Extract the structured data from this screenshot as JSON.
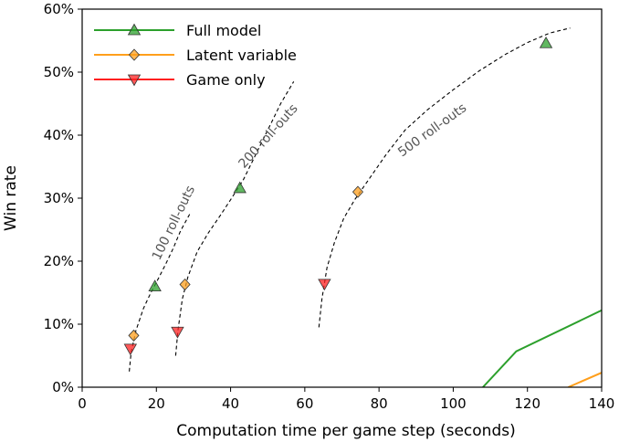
{
  "chart_data": {
    "type": "line",
    "xlabel": "Computation time per game step (seconds)",
    "ylabel": "Win rate",
    "xlim": [
      0,
      140
    ],
    "ylim": [
      0,
      60
    ],
    "xticks": [
      0,
      20,
      40,
      60,
      80,
      100,
      120,
      140
    ],
    "xtick_labels": [
      "0",
      "20",
      "40",
      "60",
      "80",
      "100",
      "120",
      "140"
    ],
    "yticks": [
      0,
      10,
      20,
      30,
      40,
      50,
      60
    ],
    "ytick_labels": [
      "0%",
      "10%",
      "20%",
      "30%",
      "40%",
      "50%",
      "60%"
    ],
    "grid": false,
    "legend_position": "top-left",
    "series": [
      {
        "name": "Full model",
        "color": "#2ca02c",
        "marker": "triangle-up",
        "points": [
          [
            19.6,
            16
          ],
          [
            42.5,
            31.6
          ],
          [
            125,
            54.6
          ]
        ],
        "line": [
          [
            108,
            0
          ],
          [
            117,
            5.7
          ],
          [
            140,
            12.2
          ]
        ]
      },
      {
        "name": "Latent variable",
        "color": "#ff9f1c",
        "marker": "diamond",
        "points": [
          [
            13.9,
            8.2
          ],
          [
            27.7,
            16.3
          ],
          [
            74.3,
            31
          ]
        ],
        "line": [
          [
            131,
            0
          ],
          [
            140,
            2.3
          ]
        ]
      },
      {
        "name": "Game only",
        "color": "#ff2020",
        "marker": "triangle-down",
        "points": [
          [
            13,
            6.1
          ],
          [
            25.7,
            8.8
          ],
          [
            65.3,
            16.4
          ]
        ],
        "line": []
      }
    ],
    "curves": [
      {
        "label": "100 roll-outs",
        "points": [
          [
            12.7,
            2.5
          ],
          [
            13.2,
            5.5
          ],
          [
            14.5,
            9
          ],
          [
            16.5,
            12.5
          ],
          [
            18.5,
            15
          ],
          [
            20.5,
            17.2
          ],
          [
            22.5,
            19.5
          ],
          [
            24.5,
            22
          ],
          [
            26.5,
            24.8
          ],
          [
            29,
            27.5
          ]
        ]
      },
      {
        "label": "200 roll-outs",
        "points": [
          [
            25.2,
            5
          ],
          [
            25.8,
            9
          ],
          [
            27,
            14
          ],
          [
            28.5,
            17.5
          ],
          [
            31,
            21.5
          ],
          [
            34,
            24.5
          ],
          [
            37.5,
            27.5
          ],
          [
            40.5,
            30.2
          ],
          [
            43.5,
            33
          ],
          [
            46,
            36
          ],
          [
            48.5,
            39
          ],
          [
            51,
            42
          ],
          [
            53.5,
            45
          ],
          [
            57,
            48.5
          ]
        ]
      },
      {
        "label": "500 roll-outs",
        "points": [
          [
            63.8,
            9.5
          ],
          [
            64.6,
            14
          ],
          [
            66,
            19
          ],
          [
            68,
            23
          ],
          [
            70.5,
            26.8
          ],
          [
            73.5,
            29.8
          ],
          [
            77.5,
            33.2
          ],
          [
            82,
            37
          ],
          [
            87,
            40.8
          ],
          [
            93,
            44
          ],
          [
            100,
            47.2
          ],
          [
            107,
            50.2
          ],
          [
            114,
            52.8
          ],
          [
            120,
            54.7
          ],
          [
            126,
            56.2
          ],
          [
            131.5,
            57
          ]
        ]
      }
    ],
    "annotations": [
      {
        "text": "100 roll-outs"
      },
      {
        "text": "200 roll-outs"
      },
      {
        "text": "500 roll-outs"
      }
    ]
  }
}
